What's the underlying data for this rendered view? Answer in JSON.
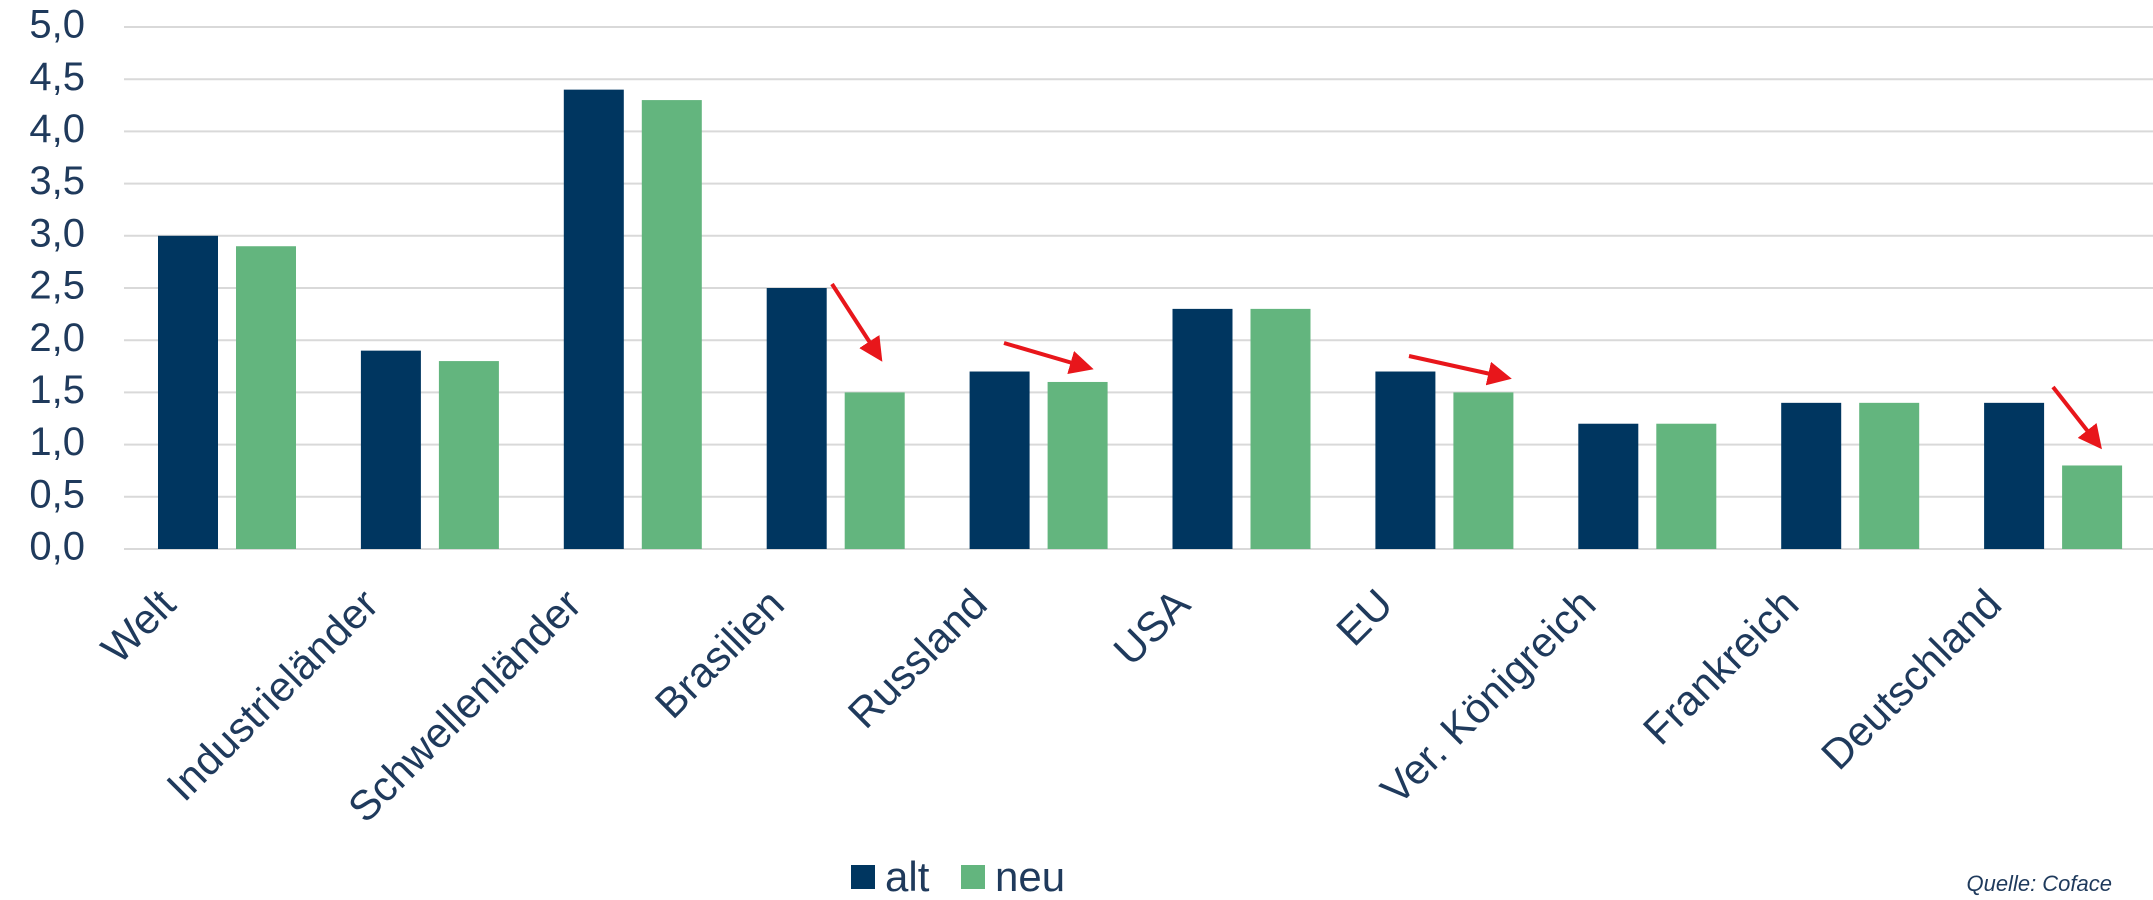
{
  "chart_data": {
    "type": "bar",
    "categories": [
      "Welt",
      "Industrieländer",
      "Schwellenländer",
      "Brasilien",
      "Russland",
      "USA",
      "EU",
      "Ver. Königreich",
      "Frankreich",
      "Deutschland"
    ],
    "series": [
      {
        "name": "alt",
        "color": "#003660",
        "values": [
          3.0,
          1.9,
          4.4,
          2.5,
          1.7,
          2.3,
          1.7,
          1.2,
          1.4,
          1.4
        ]
      },
      {
        "name": "neu",
        "color": "#63b57e",
        "values": [
          2.9,
          1.8,
          4.3,
          1.5,
          1.6,
          2.3,
          1.5,
          1.2,
          1.4,
          0.8
        ]
      }
    ],
    "ylim": [
      0,
      5
    ],
    "yticks": [
      {
        "value": 0,
        "label": "0,0"
      },
      {
        "value": 0.5,
        "label": "0,5"
      },
      {
        "value": 1,
        "label": "1,0"
      },
      {
        "value": 1.5,
        "label": "1,5"
      },
      {
        "value": 2,
        "label": "2,0"
      },
      {
        "value": 2.5,
        "label": "2,5"
      },
      {
        "value": 3,
        "label": "3,0"
      },
      {
        "value": 3.5,
        "label": "3,5"
      },
      {
        "value": 4,
        "label": "4,0"
      },
      {
        "value": 4.5,
        "label": "4,5"
      },
      {
        "value": 5,
        "label": "5,0"
      }
    ],
    "grid": true,
    "legend": "bottom",
    "source": "Quelle: Coface"
  }
}
